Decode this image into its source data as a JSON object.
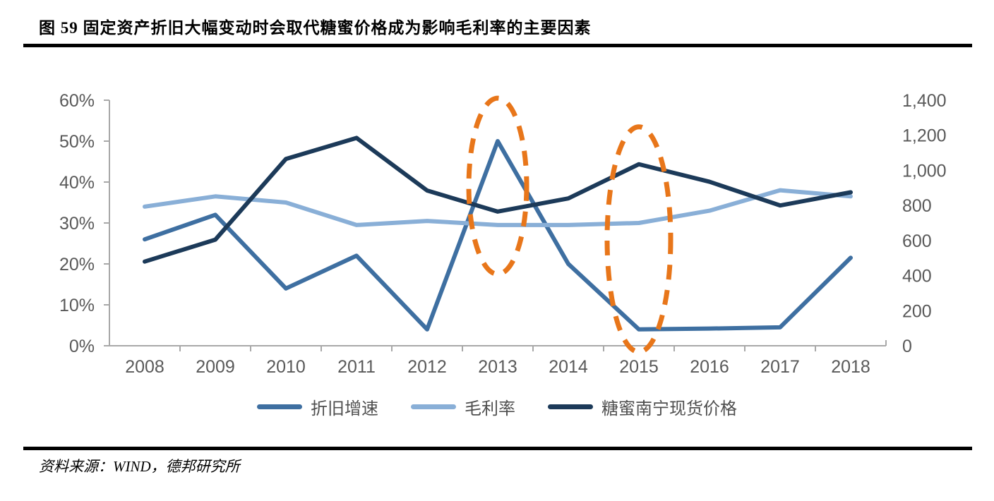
{
  "figure": {
    "title": "图 59 固定资产折旧大幅变动时会取代糖蜜价格成为影响毛利率的主要因素",
    "source": "资料来源：WIND，德邦研究所"
  },
  "chart_data": {
    "type": "line",
    "title": "",
    "grid": false,
    "legend_position": "bottom",
    "categories": [
      "2008",
      "2009",
      "2010",
      "2011",
      "2012",
      "2013",
      "2014",
      "2015",
      "2016",
      "2017",
      "2018"
    ],
    "series": [
      {
        "name": "折旧增速",
        "axis": "left",
        "unit": "%",
        "color": "#3E6FA1",
        "values": [
          26,
          32,
          14,
          22,
          4,
          50,
          20,
          4,
          4.2,
          4.5,
          21.5
        ]
      },
      {
        "name": "毛利率",
        "axis": "left",
        "unit": "%",
        "color": "#89AFD7",
        "values": [
          34,
          36.5,
          35,
          29.5,
          30.5,
          29.5,
          29.5,
          30,
          33,
          38,
          36.5
        ]
      },
      {
        "name": "糖蜜南宁现货价格",
        "axis": "right",
        "unit": "",
        "color": "#1C3A59",
        "values": [
          480,
          605,
          1065,
          1185,
          885,
          765,
          840,
          1035,
          935,
          800,
          875
        ]
      }
    ],
    "left_axis": {
      "min": 0,
      "max": 60,
      "step": 10,
      "ticks": [
        "60%",
        "50%",
        "40%",
        "30%",
        "20%",
        "10%",
        "0%"
      ]
    },
    "right_axis": {
      "min": 0,
      "max": 1400,
      "step": 200,
      "ticks": [
        "1,400",
        "1,200",
        "1,000",
        "800",
        "600",
        "400",
        "200",
        "0"
      ]
    },
    "annotations": [
      {
        "type": "dashed-ellipse",
        "center_year": "2013",
        "center_pct": 39,
        "radius_pct": 21.5,
        "radius_years": 0.41
      },
      {
        "type": "dashed-ellipse",
        "center_year": "2015",
        "center_pct": 26,
        "radius_pct": 27.5,
        "radius_years": 0.45
      }
    ],
    "colors": {
      "axis_line": "#A8A8A8",
      "tick_text": "#595959",
      "annotation": "#E8761A"
    }
  }
}
